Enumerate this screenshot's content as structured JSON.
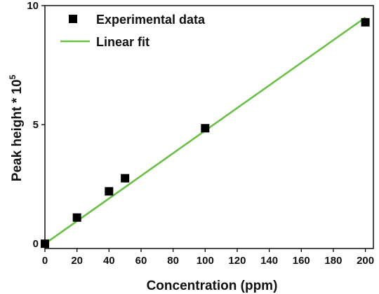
{
  "chart_data": {
    "type": "scatter",
    "xlabel": "Concentration (ppm)",
    "ylabel": "Peak height * 10",
    "ylabel_superscript": "5",
    "xlim": [
      0,
      205
    ],
    "ylim": [
      -0.2,
      10
    ],
    "x_ticks": [
      0,
      20,
      40,
      60,
      80,
      100,
      120,
      140,
      160,
      180,
      200
    ],
    "y_ticks": [
      0,
      5,
      10
    ],
    "legend_position": "top-left",
    "series": [
      {
        "name": "Experimental data",
        "kind": "scatter",
        "marker": "square",
        "color": "#000000",
        "points": [
          {
            "x": 0,
            "y": 0
          },
          {
            "x": 20,
            "y": 1.1
          },
          {
            "x": 40,
            "y": 2.2
          },
          {
            "x": 50,
            "y": 2.75
          },
          {
            "x": 100,
            "y": 4.85
          },
          {
            "x": 200,
            "y": 9.3
          }
        ]
      },
      {
        "name": "Linear fit",
        "kind": "line",
        "color": "#6abf45",
        "points": [
          {
            "x": 0,
            "y": 0
          },
          {
            "x": 200,
            "y": 9.5
          }
        ]
      }
    ]
  }
}
